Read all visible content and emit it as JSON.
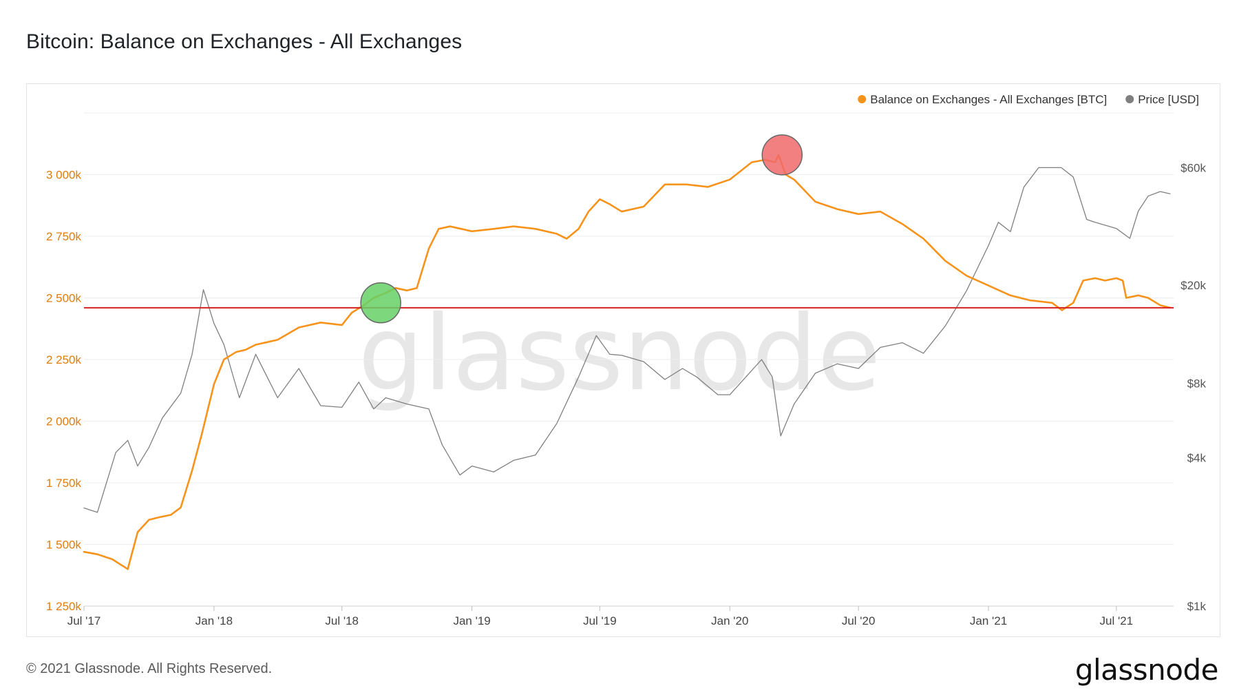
{
  "title": "Bitcoin: Balance on Exchanges - All Exchanges",
  "footer": "© 2021 Glassnode. All Rights Reserved.",
  "logo": "glassnode",
  "watermark": "glassnode",
  "colors": {
    "balance": "#f7931a",
    "price": "#7f7f7f",
    "reference_line": "#d61f1f",
    "marker_green": "#66d066",
    "marker_red": "#f06a6a",
    "left_axis_text": "#e07c0a",
    "right_axis_text": "#555555"
  },
  "chart_data": {
    "type": "line",
    "x_ticks": [
      "Jul '17",
      "Jan '18",
      "Jul '18",
      "Jan '19",
      "Jul '19",
      "Jan '20",
      "Jul '20",
      "Jan '21",
      "Jul '21"
    ],
    "x_range": [
      "2017-07-01",
      "2021-09-20"
    ],
    "y_left": {
      "ticks": [
        "1 250k",
        "1 500k",
        "1 750k",
        "2 000k",
        "2 250k",
        "2 500k",
        "2 750k",
        "3 000k"
      ],
      "range": [
        1250000,
        3250000
      ]
    },
    "y_right": {
      "scale": "log",
      "ticks": [
        "$1k",
        "$4k",
        "$8k",
        "$20k",
        "$60k"
      ],
      "range": [
        1000,
        100000
      ]
    },
    "legend_position": "top-right",
    "grid": true,
    "series": [
      {
        "name": "Balance on Exchanges - All Exchanges [BTC]",
        "axis": "left",
        "x": [
          "2017-07-01",
          "2017-07-20",
          "2017-08-10",
          "2017-09-01",
          "2017-09-15",
          "2017-10-01",
          "2017-10-15",
          "2017-11-01",
          "2017-11-15",
          "2017-12-01",
          "2017-12-15",
          "2018-01-01",
          "2018-01-15",
          "2018-02-01",
          "2018-02-15",
          "2018-03-01",
          "2018-04-01",
          "2018-05-01",
          "2018-06-01",
          "2018-07-01",
          "2018-07-15",
          "2018-08-01",
          "2018-08-15",
          "2018-09-01",
          "2018-09-15",
          "2018-10-01",
          "2018-10-15",
          "2018-11-01",
          "2018-11-15",
          "2018-12-01",
          "2019-01-01",
          "2019-02-01",
          "2019-03-01",
          "2019-04-01",
          "2019-05-01",
          "2019-05-15",
          "2019-06-01",
          "2019-06-15",
          "2019-07-01",
          "2019-07-15",
          "2019-08-01",
          "2019-09-01",
          "2019-10-01",
          "2019-11-01",
          "2019-12-01",
          "2020-01-01",
          "2020-02-01",
          "2020-02-20",
          "2020-03-05",
          "2020-03-10",
          "2020-03-20",
          "2020-04-01",
          "2020-05-01",
          "2020-06-01",
          "2020-07-01",
          "2020-08-01",
          "2020-09-01",
          "2020-10-01",
          "2020-11-01",
          "2020-12-01",
          "2021-01-01",
          "2021-02-01",
          "2021-03-01",
          "2021-04-01",
          "2021-04-15",
          "2021-05-01",
          "2021-05-15",
          "2021-06-01",
          "2021-06-15",
          "2021-07-01",
          "2021-07-10",
          "2021-07-15",
          "2021-08-01",
          "2021-08-15",
          "2021-09-01",
          "2021-09-15"
        ],
        "values": [
          1470000,
          1460000,
          1440000,
          1400000,
          1550000,
          1600000,
          1610000,
          1620000,
          1650000,
          1800000,
          1950000,
          2150000,
          2250000,
          2280000,
          2290000,
          2310000,
          2330000,
          2380000,
          2400000,
          2390000,
          2440000,
          2470000,
          2500000,
          2520000,
          2540000,
          2530000,
          2540000,
          2700000,
          2780000,
          2790000,
          2770000,
          2780000,
          2790000,
          2780000,
          2760000,
          2740000,
          2780000,
          2850000,
          2900000,
          2880000,
          2850000,
          2870000,
          2960000,
          2960000,
          2950000,
          2980000,
          3050000,
          3060000,
          3050000,
          3080000,
          3000000,
          2980000,
          2890000,
          2860000,
          2840000,
          2850000,
          2800000,
          2740000,
          2650000,
          2590000,
          2550000,
          2510000,
          2490000,
          2480000,
          2450000,
          2480000,
          2570000,
          2580000,
          2570000,
          2580000,
          2570000,
          2500000,
          2510000,
          2500000,
          2470000,
          2460000
        ]
      },
      {
        "name": "Price [USD]",
        "axis": "right",
        "x": [
          "2017-07-01",
          "2017-07-20",
          "2017-08-15",
          "2017-09-01",
          "2017-09-15",
          "2017-10-01",
          "2017-10-20",
          "2017-11-15",
          "2017-12-01",
          "2017-12-17",
          "2018-01-01",
          "2018-01-15",
          "2018-02-06",
          "2018-03-01",
          "2018-04-01",
          "2018-05-01",
          "2018-06-01",
          "2018-07-01",
          "2018-07-25",
          "2018-08-15",
          "2018-09-01",
          "2018-10-01",
          "2018-11-01",
          "2018-11-20",
          "2018-12-15",
          "2019-01-01",
          "2019-02-01",
          "2019-03-01",
          "2019-04-01",
          "2019-05-01",
          "2019-06-01",
          "2019-06-26",
          "2019-07-15",
          "2019-08-01",
          "2019-09-01",
          "2019-10-01",
          "2019-10-26",
          "2019-11-15",
          "2019-12-15",
          "2020-01-01",
          "2020-02-15",
          "2020-03-01",
          "2020-03-13",
          "2020-04-01",
          "2020-05-01",
          "2020-06-01",
          "2020-07-01",
          "2020-08-01",
          "2020-09-01",
          "2020-10-01",
          "2020-11-01",
          "2020-12-01",
          "2021-01-01",
          "2021-01-15",
          "2021-02-01",
          "2021-02-20",
          "2021-03-13",
          "2021-04-14",
          "2021-05-01",
          "2021-05-20",
          "2021-06-01",
          "2021-07-01",
          "2021-07-20",
          "2021-08-01",
          "2021-08-15",
          "2021-09-01",
          "2021-09-15"
        ],
        "values": [
          2500,
          2400,
          4200,
          4700,
          3700,
          4400,
          5800,
          7300,
          10500,
          19200,
          14000,
          11500,
          7000,
          10500,
          7000,
          9200,
          6500,
          6400,
          8100,
          6300,
          7000,
          6600,
          6300,
          4500,
          3400,
          3700,
          3500,
          3900,
          4100,
          5500,
          8500,
          12500,
          10500,
          10400,
          9800,
          8300,
          9200,
          8500,
          7200,
          7200,
          10000,
          8500,
          4900,
          6600,
          8800,
          9600,
          9200,
          11200,
          11700,
          10600,
          13700,
          19000,
          29000,
          36000,
          33000,
          50000,
          60000,
          60000,
          55000,
          37000,
          36000,
          34000,
          31000,
          40000,
          46000,
          48000,
          47000
        ]
      }
    ],
    "annotations": [
      {
        "type": "horizontal_line",
        "y": 2460000,
        "axis": "left"
      },
      {
        "type": "circle_marker",
        "x": "2018-08-25",
        "y": 2480000,
        "axis": "left"
      },
      {
        "type": "circle_marker",
        "x": "2020-03-15",
        "y": 3080000,
        "axis": "left"
      }
    ]
  }
}
